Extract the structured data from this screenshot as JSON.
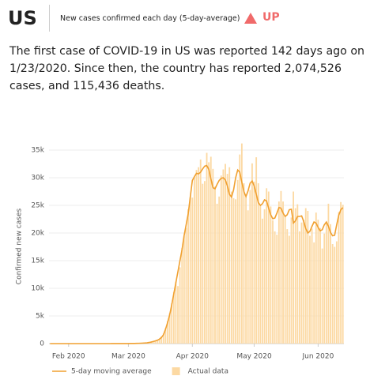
{
  "header": {
    "title": "US",
    "subtitle": "New cases confirmed each day (5-day-average)",
    "trend": "UP"
  },
  "summary": "The first case of COVID-19 in US was reported 142 days ago on 1/23/2020. Since then, the country has reported 2,074,526 cases, and 115,436 deaths.",
  "chart_data": {
    "type": "line",
    "y_label": "Confirmed new cases",
    "categories": [
      null,
      null,
      null,
      null,
      null,
      null,
      null,
      null,
      null,
      "Feb 2020",
      null,
      null,
      null,
      null,
      null,
      null,
      null,
      null,
      null,
      null,
      null,
      null,
      null,
      null,
      null,
      null,
      null,
      null,
      null,
      null,
      null,
      null,
      null,
      null,
      null,
      null,
      null,
      null,
      "Mar 2020",
      null,
      null,
      null,
      null,
      null,
      null,
      null,
      null,
      null,
      null,
      null,
      null,
      null,
      null,
      null,
      null,
      null,
      null,
      null,
      null,
      null,
      null,
      null,
      null,
      null,
      null,
      null,
      null,
      null,
      null,
      "Apr 2020",
      null,
      null,
      null,
      null,
      null,
      null,
      null,
      null,
      null,
      null,
      null,
      null,
      null,
      null,
      null,
      null,
      null,
      null,
      null,
      null,
      null,
      null,
      null,
      null,
      null,
      null,
      null,
      null,
      null,
      "May 2020",
      null,
      null,
      null,
      null,
      null,
      null,
      null,
      null,
      null,
      null,
      null,
      null,
      null,
      null,
      null,
      null,
      null,
      null,
      null,
      null,
      null,
      null,
      null,
      null,
      null,
      null,
      null,
      null,
      null,
      null,
      "Jun 2020",
      null,
      null,
      null,
      null,
      null,
      null,
      null,
      null,
      null,
      null,
      null,
      null
    ],
    "series": [
      {
        "name": "Actual data",
        "type": "bar",
        "color": "#fcd9a3",
        "values": [
          1,
          0,
          0,
          1,
          0,
          1,
          2,
          0,
          3,
          1,
          0,
          1,
          2,
          0,
          1,
          0,
          0,
          1,
          0,
          1,
          0,
          0,
          1,
          0,
          0,
          0,
          1,
          0,
          1,
          3,
          8,
          3,
          6,
          9,
          10,
          5,
          13,
          20,
          24,
          21,
          30,
          40,
          47,
          64,
          78,
          105,
          143,
          172,
          220,
          330,
          390,
          530,
          680,
          830,
          1300,
          1800,
          2800,
          4100,
          5500,
          7300,
          9300,
          11200,
          10400,
          13800,
          17300,
          19400,
          20900,
          24300,
          26500,
          26400,
          30100,
          31400,
          31900,
          33300,
          28900,
          29400,
          34500,
          32800,
          33800,
          31600,
          28400,
          25300,
          26600,
          30400,
          31500,
          32500,
          30700,
          31900,
          27500,
          26300,
          26100,
          29600,
          34200,
          36200,
          29000,
          26500,
          24100,
          27800,
          32600,
          29300,
          33700,
          29000,
          25000,
          22600,
          24300,
          28100,
          27500,
          24800,
          22300,
          20300,
          19700,
          25700,
          27600,
          25700,
          22900,
          20700,
          19500,
          22800,
          27500,
          24500,
          25200,
          20300,
          21900,
          22400,
          24500,
          24000,
          19500,
          20800,
          18300,
          23700,
          22400,
          20900,
          17200,
          19900,
          21900,
          25300,
          21600,
          18000,
          17500,
          18500,
          23800,
          25600,
          25100
        ]
      },
      {
        "name": "5-day moving average",
        "type": "line",
        "color": "#f0a030",
        "values": [
          0,
          0,
          0,
          0,
          0,
          1,
          1,
          1,
          1,
          1,
          1,
          1,
          1,
          1,
          1,
          1,
          1,
          1,
          1,
          1,
          1,
          1,
          1,
          1,
          1,
          1,
          1,
          1,
          1,
          2,
          3,
          4,
          5,
          6,
          7,
          8,
          10,
          13,
          16,
          20,
          25,
          30,
          40,
          55,
          70,
          90,
          110,
          140,
          200,
          280,
          380,
          480,
          600,
          800,
          1100,
          1600,
          2600,
          3800,
          5200,
          7000,
          9000,
          11000,
          13000,
          15000,
          17000,
          19500,
          21500,
          23500,
          26500,
          29500,
          30200,
          30800,
          30700,
          31000,
          31600,
          32100,
          32200,
          31500,
          29800,
          28200,
          28000,
          28800,
          29500,
          29900,
          30000,
          29600,
          28500,
          27000,
          26500,
          27800,
          30000,
          31400,
          31000,
          29200,
          27500,
          26600,
          27600,
          29000,
          29400,
          28500,
          27000,
          25500,
          25000,
          25300,
          26000,
          25800,
          24500,
          23300,
          22600,
          22700,
          23600,
          24600,
          24500,
          23600,
          23000,
          23300,
          24200,
          24300,
          21800,
          22200,
          23000,
          23000,
          23100,
          22100,
          20800,
          20000,
          20300,
          21200,
          22000,
          21800,
          21000,
          20400,
          20600,
          21500,
          22000,
          21200,
          20100,
          19500,
          19600,
          21500,
          23200,
          24200,
          24600
        ]
      }
    ],
    "ylim": [
      0,
      37000
    ],
    "yticks": [
      0,
      {
        "value": 5000,
        "label": "5k"
      },
      {
        "value": 10000,
        "label": "10k"
      },
      {
        "value": 15000,
        "label": "15k"
      },
      {
        "value": 20000,
        "label": "20k"
      },
      {
        "value": 25000,
        "label": "25k"
      },
      {
        "value": 30000,
        "label": "30k"
      },
      {
        "value": 35000,
        "label": "35k"
      }
    ],
    "grid": true
  }
}
